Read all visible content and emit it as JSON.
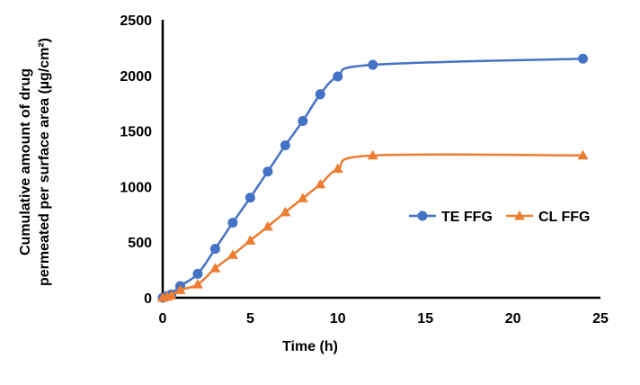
{
  "chart_data": {
    "type": "line",
    "title": "",
    "xlabel": "Time (h)",
    "ylabel_lines": [
      "Cumulative amount of drug",
      "permeated per surface area (µg/cm²)"
    ],
    "xlim": [
      0,
      25
    ],
    "ylim": [
      0,
      2500
    ],
    "xticks": [
      0,
      5,
      10,
      15,
      20,
      25
    ],
    "yticks": [
      0,
      500,
      1000,
      1500,
      2000,
      2500
    ],
    "grid": false,
    "legend_position": "right",
    "series": [
      {
        "name": "TE FFG",
        "color": "#4472C4",
        "marker": "circle",
        "x": [
          0,
          0.25,
          0.5,
          1,
          2,
          3,
          4,
          5,
          6,
          7,
          8,
          9,
          10,
          12,
          24
        ],
        "y": [
          0,
          15,
          30,
          105,
          215,
          440,
          675,
          900,
          1135,
          1370,
          1590,
          1830,
          1990,
          2095,
          2150
        ]
      },
      {
        "name": "CL FFG",
        "color": "#ED7D31",
        "marker": "triangle",
        "x": [
          0,
          0.25,
          0.5,
          1,
          2,
          3,
          4,
          5,
          6,
          7,
          8,
          9,
          10,
          12,
          24
        ],
        "y": [
          0,
          10,
          20,
          70,
          120,
          265,
          385,
          515,
          640,
          770,
          895,
          1020,
          1160,
          1280,
          1280
        ]
      }
    ]
  }
}
